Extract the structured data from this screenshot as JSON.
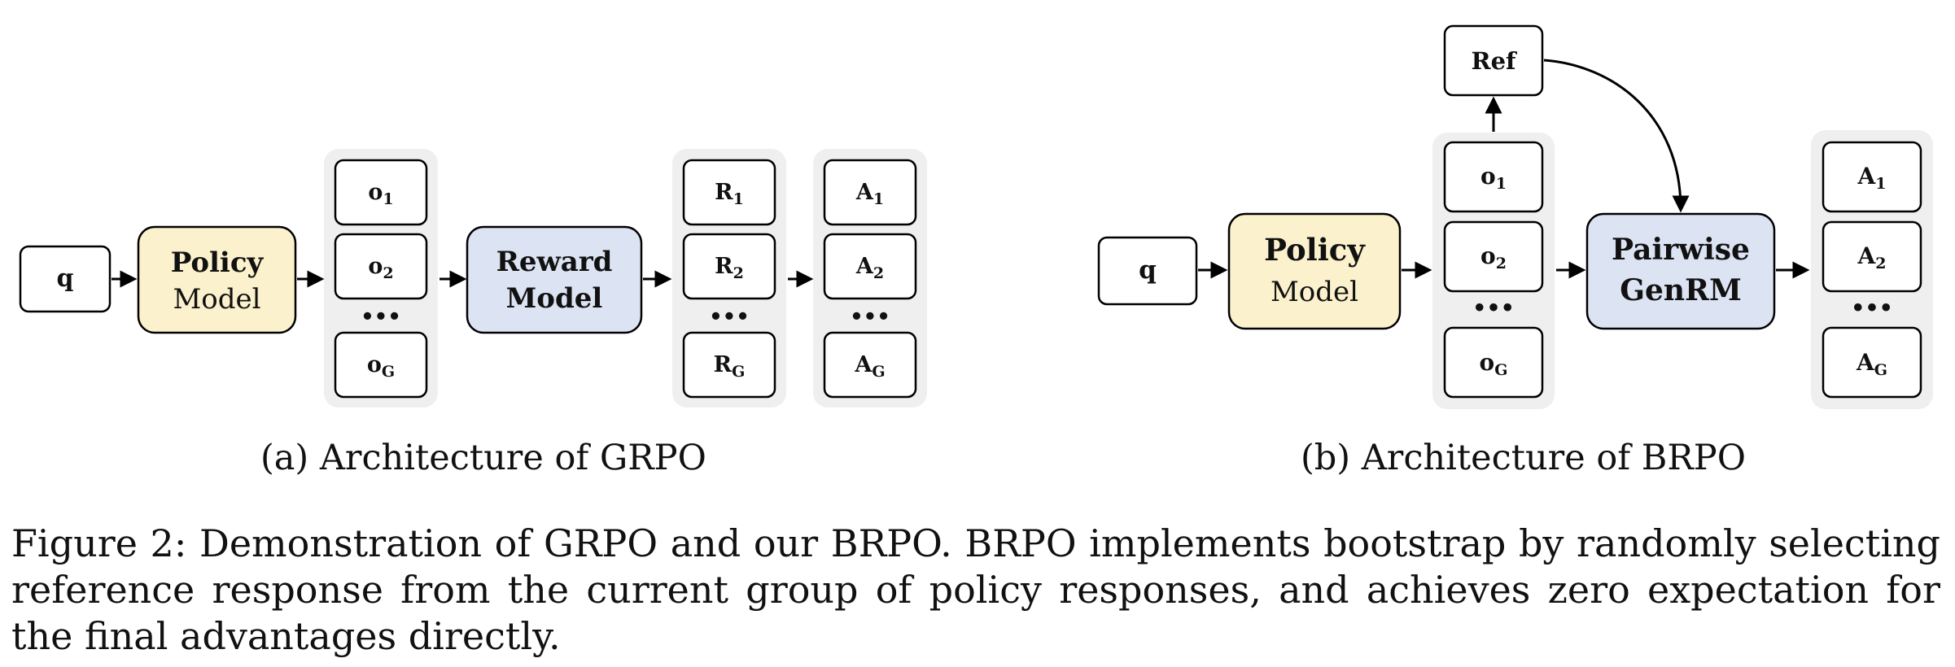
{
  "gray_group_color": "#efefef",
  "policy_model_color": "#fbf1cd",
  "reward_model_color": "#dce3f2",
  "panel_a": {
    "query": "q",
    "policy_model": {
      "line1": "Policy",
      "line2": "Model"
    },
    "outputs": {
      "o1": {
        "base": "o",
        "sub": "1"
      },
      "o2": {
        "base": "o",
        "sub": "2"
      },
      "oG": {
        "base": "o",
        "sub": "G"
      }
    },
    "reward_model": {
      "line1": "Reward",
      "line2": "Model"
    },
    "rewards": {
      "R1": {
        "base": "R",
        "sub": "1"
      },
      "R2": {
        "base": "R",
        "sub": "2"
      },
      "RG": {
        "base": "R",
        "sub": "G"
      }
    },
    "advantages": {
      "A1": {
        "base": "A",
        "sub": "1"
      },
      "A2": {
        "base": "A",
        "sub": "2"
      },
      "AG": {
        "base": "A",
        "sub": "G"
      }
    },
    "ellipsis": "•••",
    "caption": "(a) Architecture of GRPO"
  },
  "panel_b": {
    "query": "q",
    "ref": "Ref",
    "policy_model": {
      "line1": "Policy",
      "line2": "Model"
    },
    "outputs": {
      "o1": {
        "base": "o",
        "sub": "1"
      },
      "o2": {
        "base": "o",
        "sub": "2"
      },
      "oG": {
        "base": "o",
        "sub": "G"
      }
    },
    "genrm": {
      "line1": "Pairwise",
      "line2": "GenRM"
    },
    "advantages": {
      "A1": {
        "base": "A",
        "sub": "1"
      },
      "A2": {
        "base": "A",
        "sub": "2"
      },
      "AG": {
        "base": "A",
        "sub": "G"
      }
    },
    "ellipsis": "•••",
    "caption": "(b) Architecture of BRPO"
  },
  "figure_caption": "Figure 2: Demonstration of GRPO and our BRPO. BRPO implements bootstrap by randomly selecting reference response from the current group of policy responses, and achieves zero expectation for the final advantages directly."
}
